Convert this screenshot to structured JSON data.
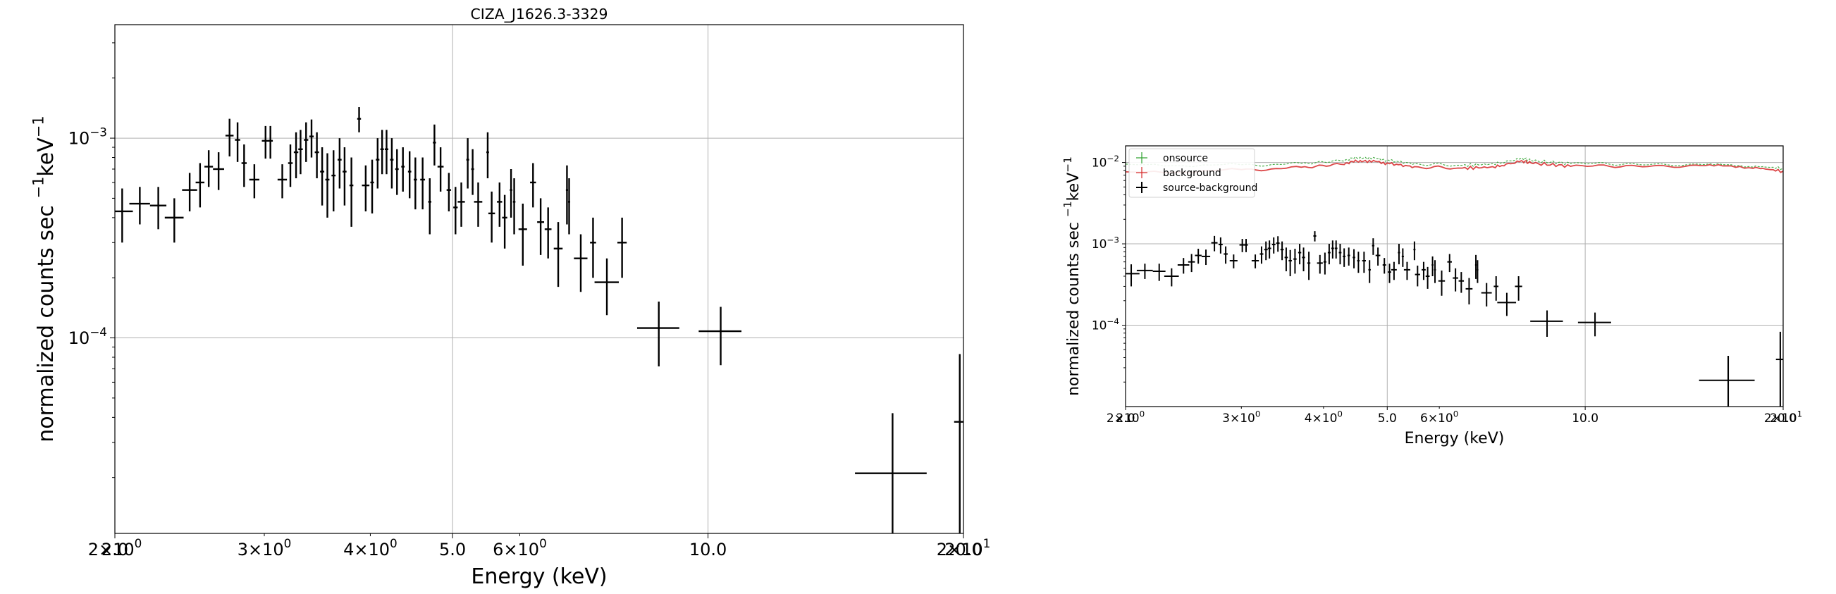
{
  "chart_data": [
    {
      "type": "scatter",
      "title": "CIZA_J1626.3-3329",
      "xlabel": "Energy (keV)",
      "ylabel": "normalized counts sec",
      "ylabel_sup": "−1",
      "ylabel_tail": "keV",
      "xscale": "log",
      "yscale": "log",
      "xlim": [
        2.0,
        20.0
      ],
      "ylim": [
        1.05e-05,
        0.0037
      ],
      "grid": true,
      "xticks": [
        {
          "value": 2.0,
          "label": "2.0"
        },
        {
          "value": 5.0,
          "label": "5.0"
        },
        {
          "value": 10.0,
          "label": "10.0"
        },
        {
          "value": 20.0,
          "label": "20.0"
        }
      ],
      "xticks_minor": [
        {
          "value": 2.0,
          "base": "2×10",
          "exp": "0"
        },
        {
          "value": 3.0,
          "base": "3×10",
          "exp": "0"
        },
        {
          "value": 4.0,
          "base": "4×10",
          "exp": "0"
        },
        {
          "value": 6.0,
          "base": "6×10",
          "exp": "0"
        },
        {
          "value": 20.0,
          "base": "2×10",
          "exp": "1"
        }
      ],
      "yticks": [
        {
          "value": 0.0001,
          "base": "10",
          "exp": "−4"
        },
        {
          "value": 0.001,
          "base": "10",
          "exp": "−3"
        }
      ],
      "series": [
        {
          "color": "#000000",
          "points": [
            [
              2.04,
              0.00043,
              0.06,
              0.00013
            ],
            [
              2.14,
              0.00047,
              0.06,
              0.0001
            ],
            [
              2.25,
              0.00046,
              0.05,
              0.00011
            ],
            [
              2.35,
              0.0004,
              0.06,
              0.0001
            ],
            [
              2.45,
              0.00055,
              0.05,
              0.00012
            ],
            [
              2.52,
              0.0006,
              0.03,
              0.00015
            ],
            [
              2.58,
              0.00072,
              0.03,
              0.00015
            ],
            [
              2.65,
              0.0007,
              0.04,
              0.00015
            ],
            [
              2.73,
              0.00103,
              0.03,
              0.00022
            ],
            [
              2.79,
              0.00098,
              0.02,
              0.00022
            ],
            [
              2.84,
              0.00075,
              0.02,
              0.00018
            ],
            [
              2.92,
              0.00062,
              0.04,
              0.00012
            ],
            [
              3.01,
              0.00097,
              0.03,
              0.00018
            ],
            [
              3.05,
              0.00097,
              0.02,
              0.00018
            ],
            [
              3.15,
              0.00062,
              0.04,
              0.00012
            ],
            [
              3.22,
              0.00075,
              0.02,
              0.00018
            ],
            [
              3.27,
              0.00085,
              0.02,
              0.00022
            ],
            [
              3.31,
              0.00088,
              0.02,
              0.00022
            ],
            [
              3.36,
              0.00098,
              0.02,
              0.00022
            ],
            [
              3.41,
              0.00102,
              0.02,
              0.00022
            ],
            [
              3.46,
              0.00085,
              0.02,
              0.00022
            ],
            [
              3.51,
              0.00068,
              0.02,
              0.00022
            ],
            [
              3.56,
              0.00062,
              0.02,
              0.00022
            ],
            [
              3.62,
              0.00065,
              0.02,
              0.00022
            ],
            [
              3.68,
              0.00078,
              0.02,
              0.00022
            ],
            [
              3.73,
              0.00068,
              0.02,
              0.00022
            ],
            [
              3.8,
              0.00058,
              0.02,
              0.00022
            ],
            [
              3.88,
              0.00125,
              0.02,
              0.00018
            ],
            [
              3.95,
              0.00058,
              0.04,
              0.00015
            ],
            [
              4.02,
              0.0006,
              0.02,
              0.00018
            ],
            [
              4.08,
              0.00078,
              0.02,
              0.00022
            ],
            [
              4.13,
              0.00088,
              0.02,
              0.00022
            ],
            [
              4.18,
              0.00088,
              0.02,
              0.00022
            ],
            [
              4.24,
              0.00078,
              0.02,
              0.00022
            ],
            [
              4.3,
              0.0007,
              0.02,
              0.00018
            ],
            [
              4.37,
              0.00072,
              0.02,
              0.00018
            ],
            [
              4.45,
              0.00068,
              0.02,
              0.00018
            ],
            [
              4.52,
              0.00062,
              0.02,
              0.00018
            ],
            [
              4.61,
              0.00062,
              0.03,
              0.00018
            ],
            [
              4.7,
              0.00048,
              0.02,
              0.00015
            ],
            [
              4.76,
              0.00095,
              0.02,
              0.00022
            ],
            [
              4.84,
              0.00072,
              0.04,
              0.00018
            ],
            [
              4.95,
              0.00055,
              0.03,
              0.00012
            ],
            [
              5.04,
              0.00045,
              0.03,
              0.00012
            ],
            [
              5.12,
              0.00048,
              0.05,
              0.00012
            ],
            [
              5.21,
              0.00078,
              0.02,
              0.00022
            ],
            [
              5.28,
              0.0007,
              0.02,
              0.00018
            ],
            [
              5.36,
              0.00048,
              0.06,
              0.00012
            ],
            [
              5.5,
              0.00085,
              0.02,
              0.00022
            ],
            [
              5.56,
              0.00042,
              0.05,
              0.00012
            ],
            [
              5.68,
              0.00048,
              0.04,
              0.00012
            ],
            [
              5.76,
              0.0004,
              0.04,
              0.00012
            ],
            [
              5.86,
              0.00055,
              0.02,
              0.00015
            ],
            [
              5.91,
              0.00048,
              0.02,
              0.00015
            ],
            [
              6.05,
              0.00035,
              0.07,
              0.00012
            ],
            [
              6.22,
              0.0006,
              0.05,
              0.00015
            ],
            [
              6.35,
              0.00038,
              0.06,
              0.00012
            ],
            [
              6.48,
              0.00035,
              0.06,
              0.0001
            ],
            [
              6.66,
              0.00028,
              0.08,
              0.0001
            ],
            [
              6.82,
              0.00055,
              0.02,
              0.00018
            ],
            [
              6.86,
              0.00048,
              0.02,
              0.00015
            ],
            [
              7.08,
              0.00025,
              0.13,
              8e-05
            ],
            [
              7.32,
              0.0003,
              0.06,
              0.0001
            ],
            [
              7.6,
              0.00019,
              0.25,
              6e-05
            ],
            [
              7.92,
              0.0003,
              0.1,
              0.0001
            ],
            [
              8.75,
              0.000112,
              0.5,
              4e-05
            ],
            [
              10.35,
              0.000108,
              0.6,
              3.5e-05
            ],
            [
              16.5,
              2.1e-05,
              1.6,
              2.1e-05
            ],
            [
              19.8,
              3.8e-05,
              0.3,
              4.5e-05
            ]
          ]
        }
      ]
    },
    {
      "type": "scatter",
      "title": "",
      "xlabel": "Energy (keV)",
      "ylabel": "normalized counts sec",
      "ylabel_sup": "−1",
      "ylabel_tail": "keV",
      "xscale": "log",
      "yscale": "log",
      "xlim": [
        2.0,
        20.0
      ],
      "ylim": [
        1e-05,
        0.016
      ],
      "grid": true,
      "legend_position": "top-left",
      "xticks": [
        {
          "value": 2.0,
          "label": "2.0"
        },
        {
          "value": 5.0,
          "label": "5.0"
        },
        {
          "value": 10.0,
          "label": "10.0"
        },
        {
          "value": 20.0,
          "label": "20.0"
        }
      ],
      "xticks_minor": [
        {
          "value": 2.0,
          "base": "2×10",
          "exp": "0"
        },
        {
          "value": 3.0,
          "base": "3×10",
          "exp": "0"
        },
        {
          "value": 4.0,
          "base": "4×10",
          "exp": "0"
        },
        {
          "value": 6.0,
          "base": "6×10",
          "exp": "0"
        },
        {
          "value": 20.0,
          "base": "2×10",
          "exp": "1"
        }
      ],
      "yticks": [
        {
          "value": 0.0001,
          "base": "10",
          "exp": "−4"
        },
        {
          "value": 0.001,
          "base": "10",
          "exp": "−3"
        },
        {
          "value": 0.01,
          "base": "10",
          "exp": "−2"
        }
      ],
      "legend": [
        {
          "label": "onsource",
          "color": "#2ca02c"
        },
        {
          "label": "background",
          "color": "#d62728"
        },
        {
          "label": "source-background",
          "color": "#000000"
        }
      ],
      "series": [
        {
          "name": "onsource",
          "color": "#2ca02c",
          "curve": [
            [
              2.0,
              0.0092
            ],
            [
              3.0,
              0.0093
            ],
            [
              3.7,
              0.0096
            ],
            [
              4.3,
              0.0108
            ],
            [
              4.6,
              0.0116
            ],
            [
              5.0,
              0.0107
            ],
            [
              5.5,
              0.0096
            ],
            [
              6.5,
              0.0092
            ],
            [
              7.3,
              0.0096
            ],
            [
              8.0,
              0.0112
            ],
            [
              8.4,
              0.0104
            ],
            [
              9.5,
              0.0097
            ],
            [
              12.0,
              0.0096
            ],
            [
              15.0,
              0.0094
            ],
            [
              18.0,
              0.009
            ],
            [
              20.0,
              0.0085
            ]
          ]
        },
        {
          "name": "background",
          "color": "#d62728",
          "curve": [
            [
              2.0,
              0.0074
            ],
            [
              3.0,
              0.0081
            ],
            [
              3.7,
              0.0086
            ],
            [
              4.3,
              0.0098
            ],
            [
              4.6,
              0.0106
            ],
            [
              5.0,
              0.0098
            ],
            [
              5.5,
              0.0088
            ],
            [
              6.5,
              0.0085
            ],
            [
              7.3,
              0.0088
            ],
            [
              8.0,
              0.0104
            ],
            [
              8.4,
              0.0097
            ],
            [
              9.5,
              0.009
            ],
            [
              12.0,
              0.0091
            ],
            [
              15.0,
              0.0091
            ],
            [
              18.0,
              0.0087
            ],
            [
              20.0,
              0.0078
            ]
          ]
        },
        {
          "name": "source-background",
          "color": "#000000",
          "points_from": 0
        }
      ]
    }
  ]
}
